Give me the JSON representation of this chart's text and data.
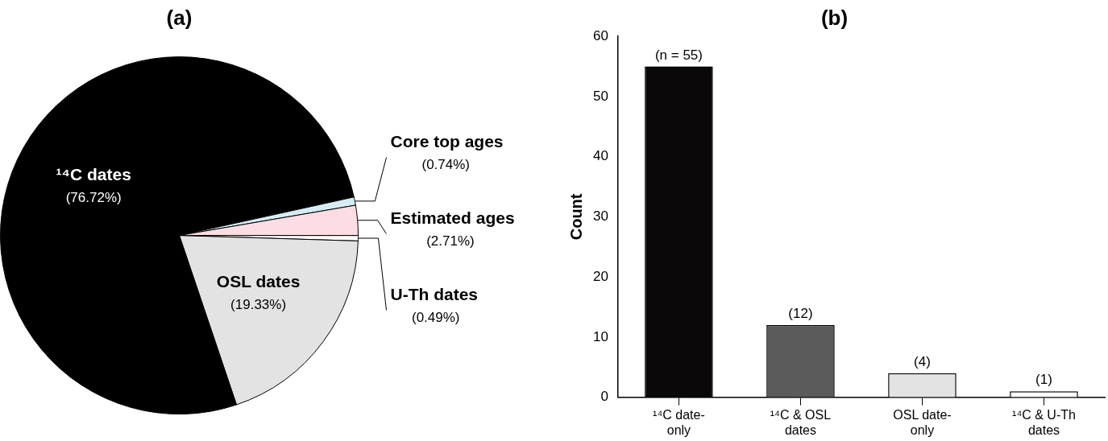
{
  "chart_data": [
    {
      "type": "pie",
      "title": "(a)",
      "categories": [
        "U-Th dates",
        "OSL dates",
        "¹⁴C dates",
        "Core top ages",
        "Estimated ages"
      ],
      "values": [
        0.49,
        19.33,
        76.72,
        0.74,
        2.71
      ],
      "colors": [
        "#ffffff",
        "#e3e3e3",
        "#000000",
        "#d6ecf5",
        "#fbdde3"
      ],
      "value_labels": [
        "(0.49%)",
        "(19.33%)",
        "(76.72%)",
        "(0.74%)",
        "(2.71%)"
      ],
      "legend": false
    },
    {
      "type": "bar",
      "title": "(b)",
      "ylabel": "Count",
      "categories": [
        "¹⁴C date-only",
        "¹⁴C & OSL dates",
        "OSL date-only",
        "¹⁴C & U-Th dates"
      ],
      "values": [
        55,
        12,
        4,
        1
      ],
      "colors": [
        "#0a0808",
        "#5a5b5a",
        "#e3e3e3",
        "#ffffff"
      ],
      "value_labels": [
        "(n = 55)",
        "(12)",
        "(4)",
        "(1)"
      ],
      "ylim": [
        0,
        60
      ],
      "yticks": [
        0,
        10,
        20,
        30,
        40,
        50,
        60
      ],
      "grid": false,
      "legend": false
    }
  ]
}
